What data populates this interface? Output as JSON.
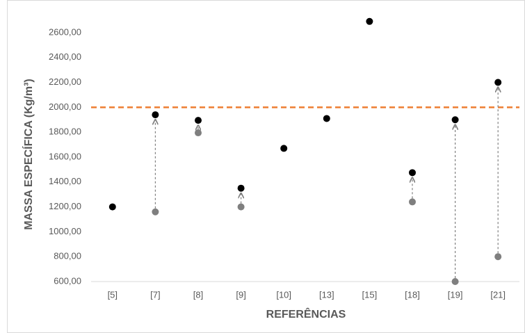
{
  "chart_data": {
    "type": "scatter",
    "x_label": "REFERÊNCIAS",
    "y_label": "MASSA ESPECÍFICA (Kg/m³)",
    "categories": [
      "[5]",
      "[7]",
      "[8]",
      "[9]",
      "[10]",
      "[13]",
      "[15]",
      "[18]",
      "[19]",
      "[21]"
    ],
    "series": [
      {
        "color": "#7f7f7f",
        "values": [
          null,
          1160,
          1795,
          1200,
          null,
          null,
          null,
          1240,
          600,
          800
        ]
      },
      {
        "color": "#000000",
        "values": [
          1200,
          1940,
          1895,
          1350,
          1670,
          1910,
          2690,
          1475,
          1900,
          2200
        ]
      }
    ],
    "arrows": true,
    "reference_line": {
      "value": 2000,
      "color": "#ed7d31"
    },
    "ylim": [
      600,
      2700
    ],
    "yticks": [
      {
        "value": 600,
        "label": "600,00"
      },
      {
        "value": 800,
        "label": "800,00"
      },
      {
        "value": 1000,
        "label": "1000,00"
      },
      {
        "value": 1200,
        "label": "1200,00"
      },
      {
        "value": 1400,
        "label": "1400,00"
      },
      {
        "value": 1600,
        "label": "1600,00"
      },
      {
        "value": 1800,
        "label": "1800,00"
      },
      {
        "value": 2000,
        "label": "2000,00"
      },
      {
        "value": 2200,
        "label": "2200,00"
      },
      {
        "value": 2400,
        "label": "2400,00"
      },
      {
        "value": 2600,
        "label": "2600,00"
      }
    ]
  }
}
